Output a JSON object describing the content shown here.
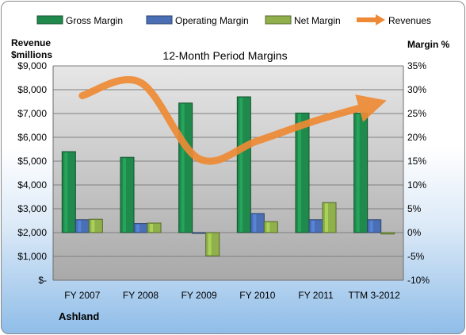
{
  "chart_data": {
    "type": "bar",
    "title": "12-Month Period Margins",
    "company": "Ashland",
    "ylabel_left": [
      "Revenue",
      "$millions"
    ],
    "ylabel_right": "Margin %",
    "categories": [
      "FY 2007",
      "FY 2008",
      "FY 2009",
      "FY 2010",
      "FY 2011",
      "TTM 3-2012"
    ],
    "y_left": {
      "lim": [
        0,
        9000
      ],
      "ticks": [
        0,
        1000,
        2000,
        3000,
        4000,
        5000,
        6000,
        7000,
        8000,
        9000
      ],
      "tick_labels": [
        "$-",
        "$1,000",
        "$2,000",
        "$3,000",
        "$4,000",
        "$5,000",
        "$6,000",
        "$7,000",
        "$8,000",
        "$9,000"
      ]
    },
    "y_right": {
      "lim": [
        -10,
        35
      ],
      "ticks": [
        -10,
        -5,
        0,
        5,
        10,
        15,
        20,
        25,
        30,
        35
      ],
      "tick_labels": [
        "-10%",
        "-5%",
        "0%",
        "5%",
        "10%",
        "15%",
        "20%",
        "25%",
        "30%",
        "35%"
      ]
    },
    "legend": {
      "placement": "top",
      "items": [
        "Gross Margin",
        "Operating Margin",
        "Net Margin",
        "Revenues"
      ]
    },
    "series": [
      {
        "name": "Gross Margin",
        "axis": "right",
        "kind": "bar",
        "color": "#1f8a4c",
        "values": [
          17.0,
          15.8,
          27.2,
          28.5,
          25.1,
          25.1
        ]
      },
      {
        "name": "Operating Margin",
        "axis": "right",
        "kind": "bar",
        "color": "#4a6fb5",
        "values": [
          2.7,
          1.9,
          0.0,
          4.0,
          2.7,
          2.7
        ]
      },
      {
        "name": "Net Margin",
        "axis": "right",
        "kind": "bar",
        "color": "#8fb04a",
        "values": [
          2.8,
          2.0,
          -4.9,
          2.3,
          6.3,
          -0.3
        ]
      },
      {
        "name": "Revenues",
        "axis": "left",
        "kind": "line",
        "color": "#ee8a35",
        "values": [
          7750,
          8300,
          5100,
          5850,
          6700,
          7400
        ]
      }
    ],
    "grid": true,
    "plot_background": "#c0c0c0"
  }
}
